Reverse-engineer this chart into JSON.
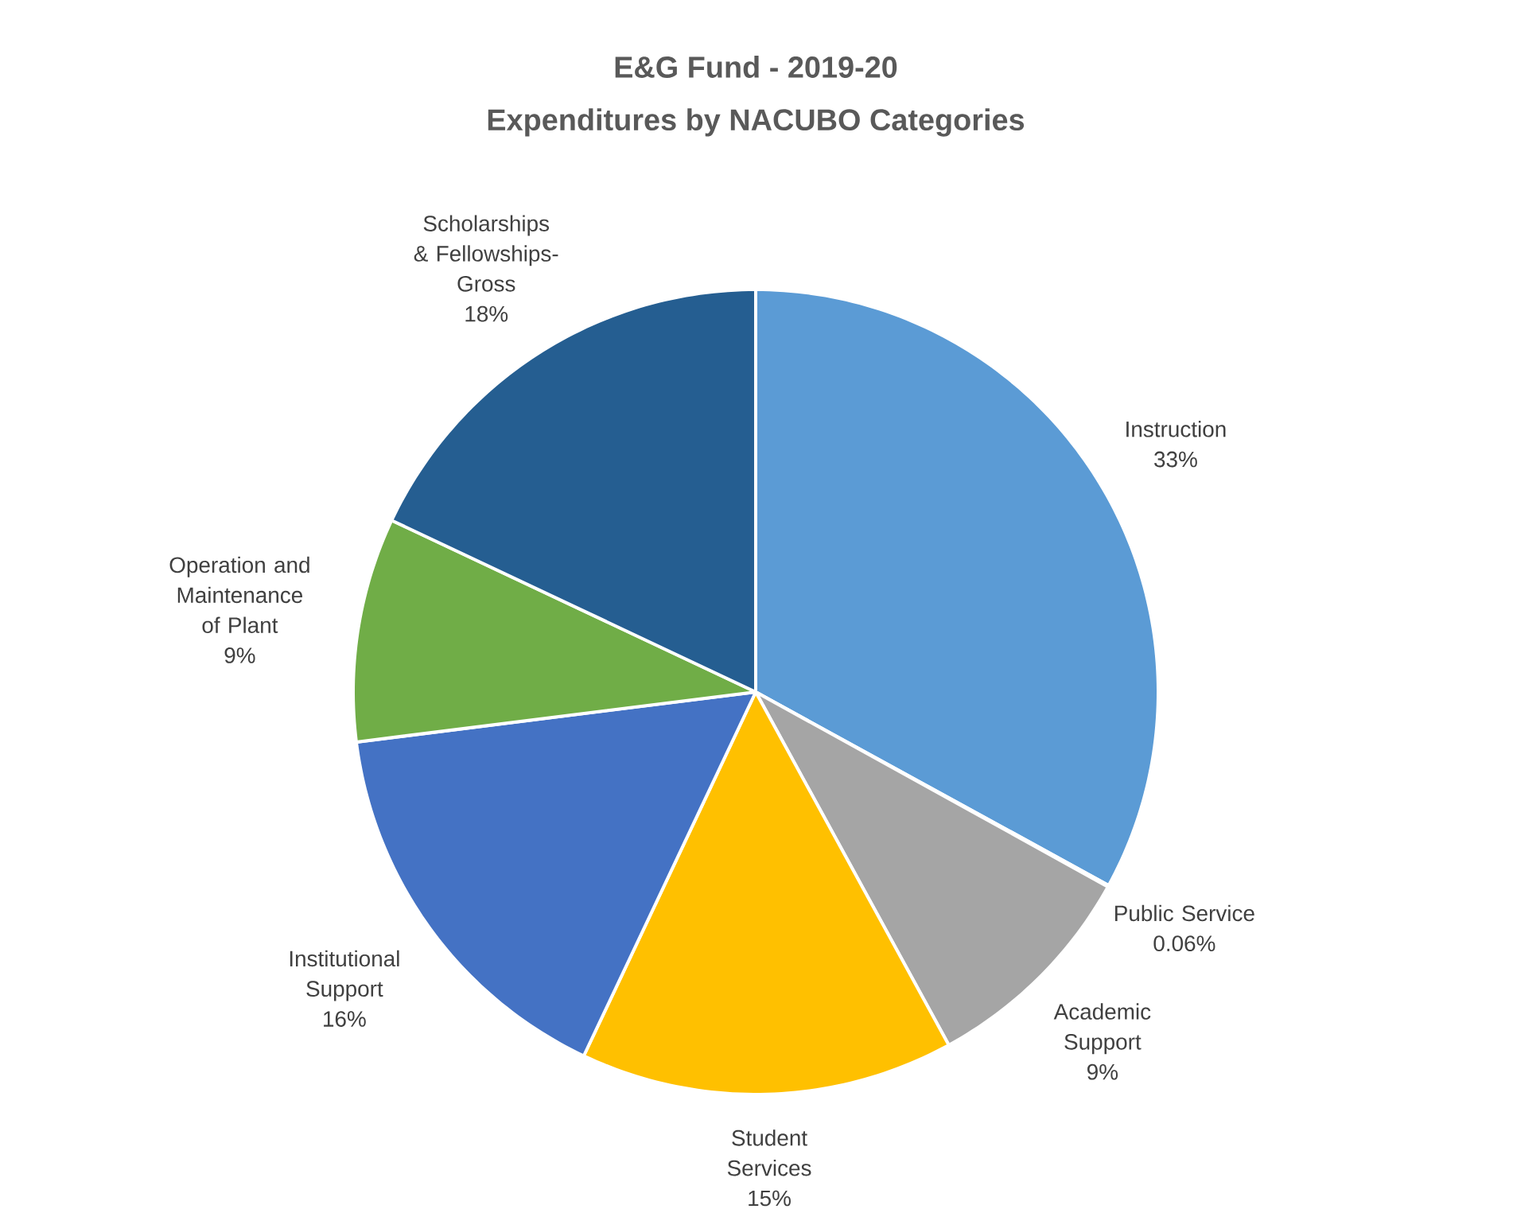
{
  "chart_data": {
    "type": "pie",
    "title": "E&G Fund - 2019-20",
    "subtitle": "Expenditures by NACUBO Categories",
    "categories": [
      "Instruction",
      "Public Service",
      "Academic Support",
      "Student Services",
      "Institutional Support",
      "Operation and Maintenance of Plant",
      "Scholarships & Fellowships-Gross"
    ],
    "values": [
      33,
      0.06,
      9,
      15,
      16,
      9,
      18
    ],
    "value_labels": [
      "33%",
      "0.06%",
      "9%",
      "15%",
      "16%",
      "9%",
      "18%"
    ],
    "colors": [
      "#5b9bd5",
      "#ed7d31",
      "#a5a5a5",
      "#ffc000",
      "#4472c4",
      "#70ad47",
      "#255e91"
    ]
  }
}
